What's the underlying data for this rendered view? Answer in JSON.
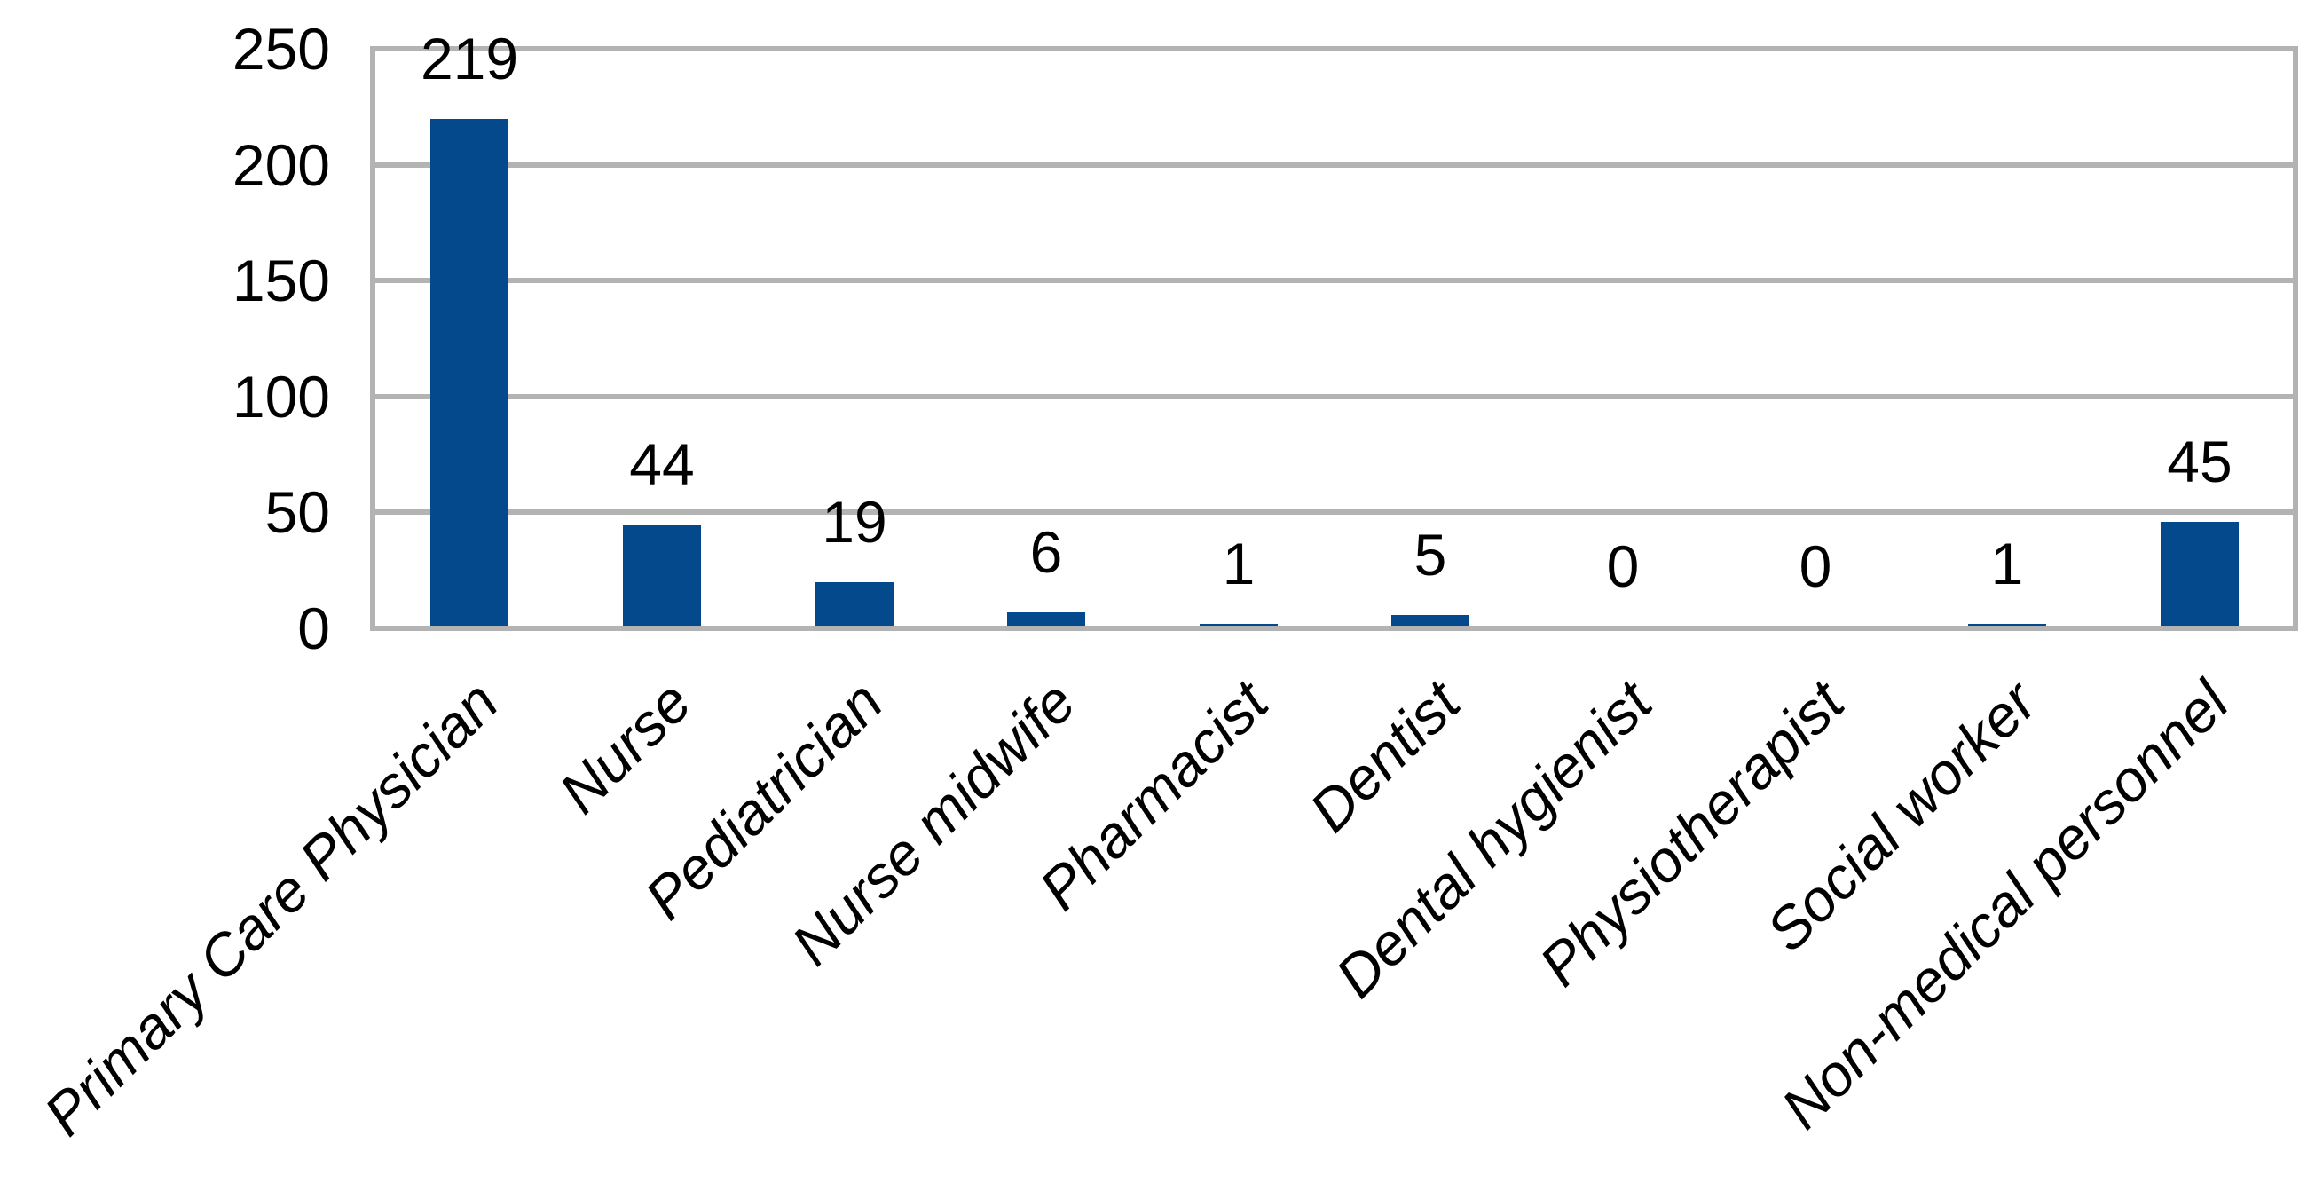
{
  "chart_data": {
    "type": "bar",
    "title": "",
    "xlabel": "",
    "ylabel": "",
    "categories": [
      "Primary Care Physician",
      "Nurse",
      "Pediatrician",
      "Nurse midwife",
      "Pharmacist",
      "Dentist",
      "Dental hygienist",
      "Physiotherapist",
      "Social worker",
      "Non-medical personnel"
    ],
    "values": [
      219,
      44,
      19,
      6,
      1,
      5,
      0,
      0,
      1,
      45
    ],
    "data_labels": [
      "219",
      "44",
      "19",
      "6",
      "1",
      "5",
      "0",
      "0",
      "1",
      "45"
    ],
    "ylim": [
      0,
      250
    ],
    "yticks": [
      0,
      50,
      100,
      150,
      200,
      250
    ],
    "ytick_labels": [
      "0",
      "50",
      "100",
      "150",
      "200",
      "250"
    ],
    "grid": "horizontal",
    "legend": "none",
    "x_tick_rotation_deg": 45,
    "x_tick_style": "italic"
  },
  "colors": {
    "bar": "#04498C",
    "grid": "#B3B3B3",
    "frame": "#B3B3B3",
    "text": "#000000",
    "background": "#FFFFFF"
  }
}
